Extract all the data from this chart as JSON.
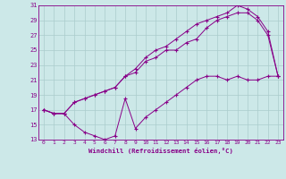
{
  "xlabel": "Windchill (Refroidissement éolien,°C)",
  "bg_color": "#cce8e8",
  "line_color": "#880088",
  "grid_color": "#aacccc",
  "xmin": 0,
  "xmax": 23,
  "ymin": 13,
  "ymax": 31,
  "yticks": [
    13,
    15,
    17,
    19,
    21,
    23,
    25,
    27,
    29,
    31
  ],
  "xticks": [
    0,
    1,
    2,
    3,
    4,
    5,
    6,
    7,
    8,
    9,
    10,
    11,
    12,
    13,
    14,
    15,
    16,
    17,
    18,
    19,
    20,
    21,
    22,
    23
  ],
  "line1_x": [
    0,
    1,
    2,
    3,
    4,
    5,
    6,
    7,
    8,
    9,
    10,
    11,
    12,
    13,
    14,
    15,
    16,
    17,
    18,
    19,
    20,
    21,
    22,
    23
  ],
  "line1_y": [
    17,
    16.5,
    16.5,
    15,
    14,
    13.5,
    13,
    13.5,
    18.5,
    14.5,
    16,
    17,
    18,
    19,
    20,
    21,
    21.5,
    21.5,
    21,
    21.5,
    21,
    21,
    21.5,
    21.5
  ],
  "line2_x": [
    0,
    1,
    2,
    3,
    4,
    5,
    6,
    7,
    8,
    9,
    10,
    11,
    12,
    13,
    14,
    15,
    16,
    17,
    18,
    19,
    20,
    21,
    22,
    23
  ],
  "line2_y": [
    17,
    16.5,
    16.5,
    18,
    18.5,
    19,
    19.5,
    20,
    21.5,
    22,
    23.5,
    24,
    25,
    25,
    26,
    26.5,
    28,
    29,
    29.5,
    30,
    30,
    29,
    27,
    21.5
  ],
  "line3_x": [
    0,
    1,
    2,
    3,
    4,
    5,
    6,
    7,
    8,
    9,
    10,
    11,
    12,
    13,
    14,
    15,
    16,
    17,
    18,
    19,
    20,
    21,
    22,
    23
  ],
  "line3_y": [
    17,
    16.5,
    16.5,
    18,
    18.5,
    19,
    19.5,
    20,
    21.5,
    22.5,
    24,
    25,
    25.5,
    26.5,
    27.5,
    28.5,
    29,
    29.5,
    30,
    31,
    30.5,
    29.5,
    27.5,
    21.5
  ]
}
